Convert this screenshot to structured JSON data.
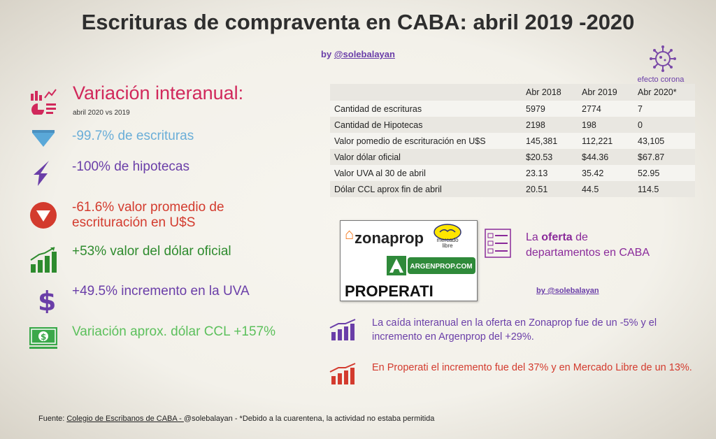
{
  "header": {
    "title": "Escrituras de compraventa en CABA: abril 2019 -2020",
    "byline_prefix": "by ",
    "byline_handle": "@solebalayan",
    "corona_label": "efecto corona"
  },
  "variacion": {
    "title": "Variación interanual:",
    "subtitle": "abril 2020 vs 2019",
    "items": [
      {
        "text": "-99.7% de escrituras",
        "color": "#6aaed8",
        "icon": "triangle-down-icon"
      },
      {
        "text": "-100% de hipotecas",
        "color": "#6a3ea8",
        "icon": "arrow-down-icon"
      },
      {
        "text": "-61.6% valor promedio de escrituración en U$S",
        "color": "#d33b2e",
        "icon": "circle-down-icon"
      },
      {
        "text": "+53% valor del dólar oficial",
        "color": "#2e8b2e",
        "icon": "bar-chart-up-icon"
      },
      {
        "text": "+49.5% incremento en la UVA",
        "color": "#6a3ea8",
        "icon": "dollar-icon"
      },
      {
        "text": "Variación aprox. dólar CCL +157%",
        "color": "#5cc05c",
        "icon": "banknote-icon"
      }
    ]
  },
  "table": {
    "headers": [
      "",
      "Abr 2018",
      "Abr 2019",
      "Abr 2020*"
    ],
    "rows": [
      [
        "Cantidad de escrituras",
        "5979",
        "2774",
        "7"
      ],
      [
        "Cantidad de Hipotecas",
        "2198",
        "198",
        "0"
      ],
      [
        "Valor pomedio de escrituración en U$S",
        "145,381",
        "112,221",
        "43,105"
      ],
      [
        "Valor dólar oficial",
        "$20.53",
        "$44.36",
        "$67.87"
      ],
      [
        "Valor UVA al 30 de abril",
        "23.13",
        "35.42",
        "52.95"
      ],
      [
        "Dólar CCL aprox fin de abril",
        "20.51",
        "44.5",
        "114.5"
      ]
    ]
  },
  "logos": {
    "zonaprop": "zonaprop",
    "mercadolibre": "mercado libre",
    "argenprop": "ARGENPROP.COM",
    "properati": "PROPERATI"
  },
  "oferta": {
    "prefix": "La ",
    "bold": "oferta",
    "suffix": " de departamentos en CABA",
    "by": "by @solebalayan"
  },
  "notes": {
    "caida": "La caída interanual en la oferta en Zonaprop fue de un -5% y el incremento  en Argenprop del  +29%.",
    "properati": "En Properati el incremento fue del 37% y en Mercado Libre de un 13%."
  },
  "footer": {
    "label": "Fuente: ",
    "source": "Colegio de  Escribanos de CABA  - ",
    "rest": " @solebalayan  - *Debido a la cuarentena, la actividad no estaba permitida"
  },
  "colors": {
    "title": "#2e2e2e",
    "accent_pink": "#d1285b",
    "purple": "#6a3ea8",
    "red": "#d33b2e"
  }
}
